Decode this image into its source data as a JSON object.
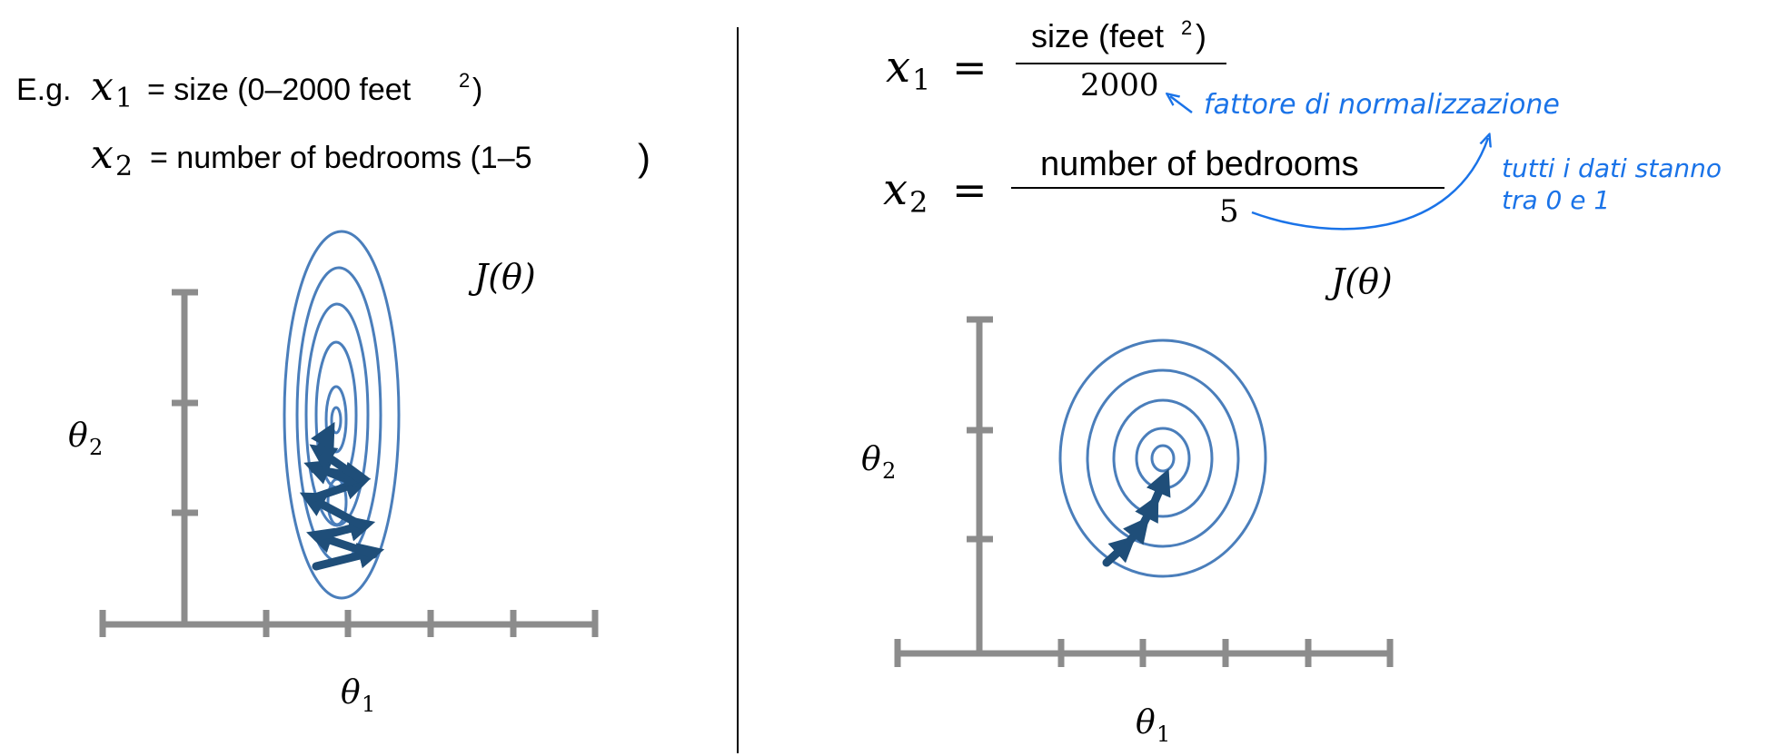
{
  "left": {
    "eg_prefix": "E.g.",
    "x1_var": "x",
    "x1_sub": "1",
    "x1_desc": "= size (0–2000 feet",
    "x1_sup": "2",
    "x1_close": ")",
    "x2_var": "x",
    "x2_sub": "2",
    "x2_desc": "= number of bedrooms (1–5",
    "x2_close": ")",
    "cost_label": "J(θ)",
    "y_axis": "θ",
    "y_axis_sub": "2",
    "x_axis": "θ",
    "x_axis_sub": "1"
  },
  "right": {
    "x1_var": "x",
    "x1_sub": "1",
    "x1_eq": "=",
    "x1_num": "size (feet",
    "x1_num_sup": "2",
    "x1_num_close": ")",
    "x1_den": "2000",
    "x2_var": "x",
    "x2_sub": "2",
    "x2_eq": "=",
    "x2_num": "number of bedrooms",
    "x2_den": "5",
    "note_normalization": "fattore di normalizzazione",
    "note_range_line1": "tutti i dati stanno",
    "note_range_line2": "tra 0 e 1",
    "cost_label": "J(θ)",
    "y_axis": "θ",
    "y_axis_sub": "2",
    "x_axis": "θ",
    "x_axis_sub": "1"
  },
  "colors": {
    "contour": "#4a7ebb",
    "arrow": "#1f4e79",
    "axis": "#8c8c8c",
    "annotation": "#1a73e8",
    "text": "#000000"
  }
}
